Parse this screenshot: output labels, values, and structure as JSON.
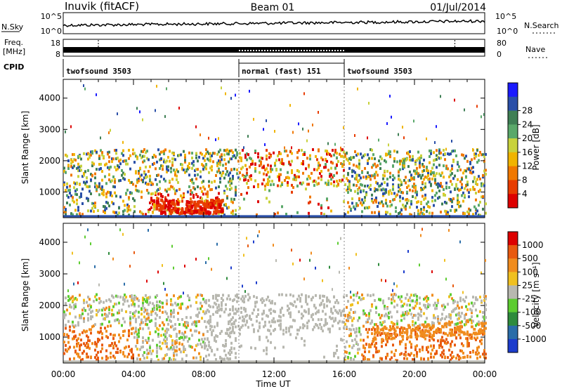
{
  "header": {
    "station": "Inuvik (fitACF)",
    "beam": "Beam 01",
    "date": "01/Jul/2014"
  },
  "strip": {
    "nsky_label": "N.Sky",
    "nsky_ticks": [
      "10^5",
      "10^0"
    ],
    "nsearch_label": "N.Search",
    "nsearch_ticks": [
      "10^5",
      "10^0"
    ],
    "freq_label_1": "Freq.",
    "freq_label_2": "[MHz]",
    "freq_ticks": [
      "18",
      "8"
    ],
    "nave_label": "Nave",
    "nave_ticks": [
      "80",
      "0"
    ],
    "cpid_label": "CPID"
  },
  "cpid_segments": [
    {
      "label": "twofsound 3503",
      "start_hour": 0,
      "end_hour": 10
    },
    {
      "label": "normal (fast) 151",
      "start_hour": 10,
      "end_hour": 16
    },
    {
      "label": "twofsound 3503",
      "start_hour": 16,
      "end_hour": 24
    }
  ],
  "colors": {
    "power": [
      "#1a1aff",
      "#2a4fa8",
      "#3f7f55",
      "#5aa86a",
      "#c8d23c",
      "#f0b400",
      "#f07800",
      "#e83c00",
      "#dd0000"
    ],
    "velocity": [
      "#1c3ccc",
      "#2a6da8",
      "#2e8b3c",
      "#5ccc30",
      "#b8b8b0",
      "#f0c020",
      "#f08c1e",
      "#e85a10",
      "#dd0000"
    ]
  },
  "chart_data": [
    {
      "type": "heatmap",
      "name": "power",
      "ylabel": "Slant Range [km]",
      "xlabel": "Time UT",
      "x_ticks": [
        "00:00",
        "04:00",
        "08:00",
        "12:00",
        "16:00",
        "20:00",
        "00:00"
      ],
      "y_ticks": [
        1000,
        2000,
        3000,
        4000
      ],
      "ylim": [
        180,
        4600
      ],
      "xlim_hours": [
        0,
        24
      ],
      "colorbar_label": "Power [dB]",
      "colorbar_ticks": [
        "4",
        "8",
        "12",
        "16",
        "20",
        "24",
        "28"
      ]
    },
    {
      "type": "heatmap",
      "name": "velocity",
      "ylabel": "Slant Range [km]",
      "xlabel": "Time UT",
      "x_ticks": [
        "00:00",
        "04:00",
        "08:00",
        "12:00",
        "16:00",
        "20:00",
        "00:00"
      ],
      "y_ticks": [
        1000,
        2000,
        3000,
        4000
      ],
      "ylim": [
        180,
        4600
      ],
      "xlim_hours": [
        0,
        24
      ],
      "colorbar_label": "Velocity [m s⁻¹]",
      "colorbar_ticks": [
        "1000",
        "500",
        "100",
        "25",
        "-25",
        "-100",
        "-500",
        "-1000"
      ]
    }
  ]
}
